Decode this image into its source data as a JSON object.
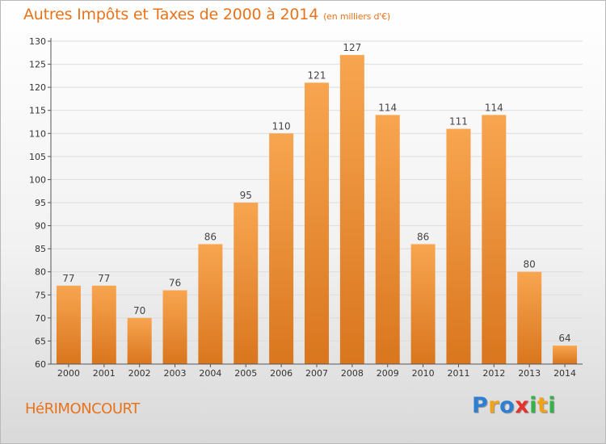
{
  "title": "Autres Impôts et Taxes de 2000 à 2014",
  "unit_note": "(en milliers d'€)",
  "town": "HéRIMONCOURT",
  "logo": {
    "letters": [
      "P",
      "r",
      "o",
      "x",
      "i",
      "t",
      "i"
    ],
    "colors": [
      "#2e7fd1",
      "#f0a21a",
      "#2e7fd1",
      "#e8312a",
      "#36b24a",
      "#f0a21a",
      "#36b24a"
    ]
  },
  "colors": {
    "bar_light": "#f8a550",
    "bar_dark": "#d9761e",
    "accent": "#e8731b"
  },
  "chart_data": {
    "type": "bar",
    "title": "Autres Impôts et Taxes de 2000 à 2014",
    "xlabel": "",
    "ylabel": "",
    "categories": [
      "2000",
      "2001",
      "2002",
      "2003",
      "2004",
      "2005",
      "2006",
      "2007",
      "2008",
      "2009",
      "2010",
      "2011",
      "2012",
      "2013",
      "2014"
    ],
    "values": [
      77,
      77,
      70,
      76,
      86,
      95,
      110,
      121,
      127,
      114,
      86,
      111,
      114,
      80,
      64
    ],
    "ylim": [
      60,
      130
    ],
    "yticks": [
      60,
      65,
      70,
      75,
      80,
      85,
      90,
      95,
      100,
      105,
      110,
      115,
      120,
      125,
      130
    ],
    "grid": true,
    "legend": "none"
  }
}
